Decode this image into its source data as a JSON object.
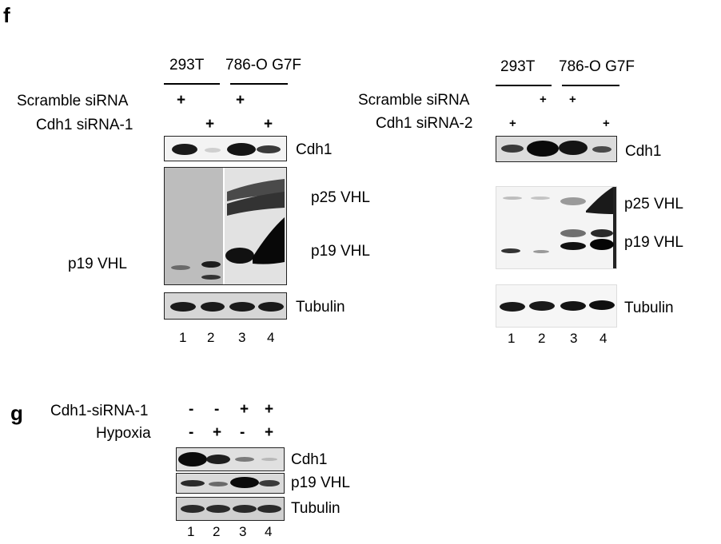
{
  "panel_f": {
    "label": "f",
    "left": {
      "groups": [
        "293T",
        "786-O G7F"
      ],
      "rows": [
        {
          "label": "Scramble siRNA",
          "marks": [
            "+",
            "",
            "+",
            ""
          ]
        },
        {
          "label": "Cdh1 siRNA-1",
          "marks": [
            "",
            "+",
            "",
            "+"
          ]
        }
      ],
      "blots": [
        "Cdh1",
        "p25 VHL",
        "p19 VHL",
        "Tubulin"
      ],
      "left_blot_label": "p19 VHL",
      "lanes": [
        "1",
        "2",
        "3",
        "4"
      ]
    },
    "right": {
      "groups": [
        "293T",
        "786-O G7F"
      ],
      "rows": [
        {
          "label": "Scramble siRNA",
          "marks": [
            "",
            "+",
            "+",
            ""
          ]
        },
        {
          "label": "Cdh1 siRNA-2",
          "marks": [
            "+",
            "",
            "",
            "+"
          ]
        }
      ],
      "blots": [
        "Cdh1",
        "p25 VHL",
        "p19 VHL",
        "Tubulin"
      ],
      "lanes": [
        "1",
        "2",
        "3",
        "4"
      ]
    }
  },
  "panel_g": {
    "label": "g",
    "rows": [
      {
        "label": "Cdh1-siRNA-1",
        "marks": [
          "-",
          "-",
          "+",
          "+"
        ]
      },
      {
        "label": "Hypoxia",
        "marks": [
          "-",
          "+",
          "-",
          "+"
        ]
      }
    ],
    "blots": [
      "Cdh1",
      "p19 VHL",
      "Tubulin"
    ],
    "lanes": [
      "1",
      "2",
      "3",
      "4"
    ]
  }
}
